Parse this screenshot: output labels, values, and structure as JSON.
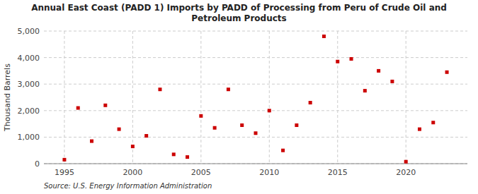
{
  "chart_data": {
    "type": "scatter",
    "title": "Annual East Coast (PADD 1) Imports by PADD of Processing from Peru of Crude Oil and\nPetroleum Products",
    "ylabel": "Thousand Barrels",
    "source": "Source: U.S. Energy Information Administration",
    "x": [
      1995,
      1996,
      1997,
      1998,
      1999,
      2000,
      2001,
      2002,
      2003,
      2004,
      2005,
      2006,
      2007,
      2008,
      2009,
      2010,
      2011,
      2012,
      2013,
      2014,
      2015,
      2016,
      2017,
      2018,
      2019,
      2020,
      2021,
      2022,
      2023
    ],
    "values": [
      150,
      2100,
      850,
      2200,
      1300,
      650,
      1050,
      2800,
      350,
      250,
      1800,
      1350,
      2800,
      1450,
      1150,
      2000,
      500,
      1450,
      2300,
      4800,
      3850,
      3950,
      2750,
      3500,
      3100,
      75,
      1300,
      1550,
      3450
    ],
    "color": "#cc0000",
    "marker": "square",
    "xlim": [
      1993.5,
      2024.5
    ],
    "ylim": [
      0,
      5000
    ],
    "xticks": [
      1995,
      2000,
      2005,
      2010,
      2015,
      2020
    ],
    "yticks": [
      0,
      {
        "value": 1000,
        "label": "1,000"
      },
      {
        "value": 2000,
        "label": "2,000"
      },
      {
        "value": 3000,
        "label": "3,000"
      },
      {
        "value": 4000,
        "label": "4,000"
      },
      {
        "value": 5000,
        "label": "5,000"
      }
    ],
    "grid": true
  }
}
